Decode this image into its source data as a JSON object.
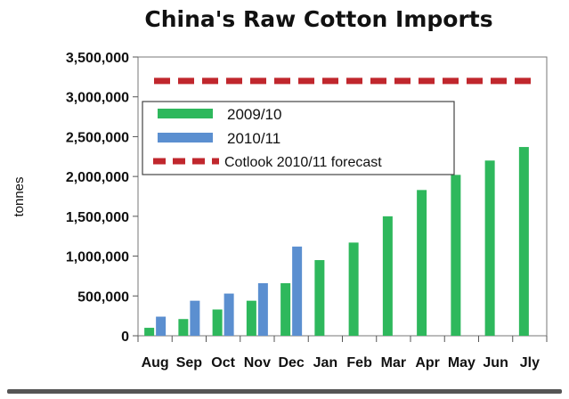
{
  "chart_data": {
    "type": "bar",
    "title": "China's Raw Cotton Imports",
    "ylabel": "tonnes",
    "xlabel": "",
    "categories": [
      "Aug",
      "Sep",
      "Oct",
      "Nov",
      "Dec",
      "Jan",
      "Feb",
      "Mar",
      "Apr",
      "May",
      "Jun",
      "Jly"
    ],
    "ylim": [
      0,
      3500000
    ],
    "yticks": [
      0,
      500000,
      1000000,
      1500000,
      2000000,
      2500000,
      3000000,
      3500000
    ],
    "ytick_labels": [
      "0",
      "500,000",
      "1,000,000",
      "1,500,000",
      "2,000,000",
      "2,500,000",
      "3,000,000",
      "3,500,000"
    ],
    "grid": false,
    "legend_position": "upper-left",
    "series": [
      {
        "name": "2009/10",
        "color": "#2eb85c",
        "values": [
          100000,
          210000,
          330000,
          440000,
          660000,
          950000,
          1170000,
          1500000,
          1830000,
          2020000,
          2200000,
          2370000
        ]
      },
      {
        "name": "2010/11",
        "color": "#5b8fd0",
        "values": [
          240000,
          440000,
          530000,
          660000,
          1120000,
          null,
          null,
          null,
          null,
          null,
          null,
          null
        ]
      }
    ],
    "reference_lines": [
      {
        "name": "Cotlook 2010/11 forecast",
        "value": 3200000,
        "color": "#c0272d",
        "style": "dashed"
      }
    ]
  }
}
